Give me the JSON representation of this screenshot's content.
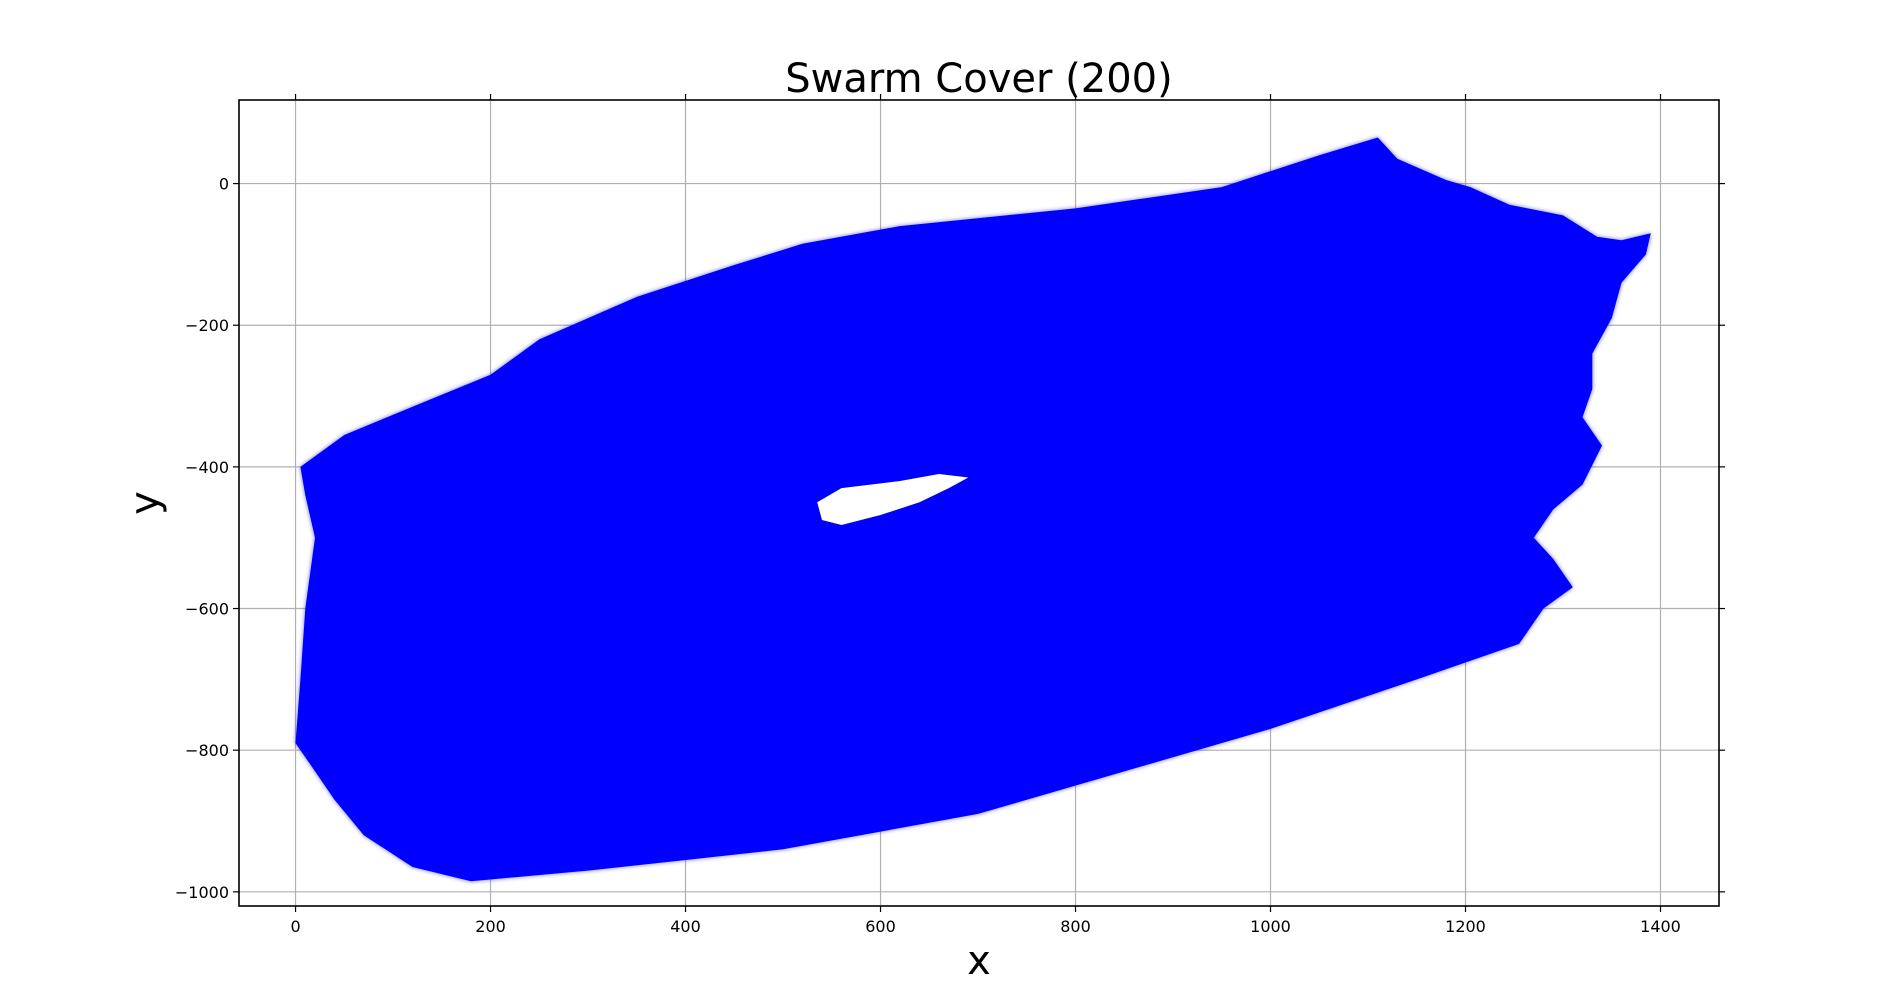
{
  "chart_data": {
    "type": "area",
    "title": "Swarm Cover (200)",
    "xlabel": "x",
    "ylabel": "y",
    "xlim": [
      -58,
      1460
    ],
    "ylim": [
      -1020,
      118
    ],
    "xticks": [
      0,
      200,
      400,
      600,
      800,
      1000,
      1200,
      1400
    ],
    "yticks": [
      0,
      -200,
      -400,
      -600,
      -800,
      -1000
    ],
    "xtick_labels": [
      "0",
      "200",
      "400",
      "600",
      "800",
      "1000",
      "1200",
      "1400"
    ],
    "ytick_labels": [
      "0",
      "−200",
      "−400",
      "−600",
      "−800",
      "−1000"
    ],
    "grid": true,
    "colors": {
      "fill": "#0000ff",
      "grid": "#b0b0b0",
      "hole": "#ffffff"
    },
    "covered_region": [
      [
        5,
        -400
      ],
      [
        50,
        -355
      ],
      [
        120,
        -315
      ],
      [
        200,
        -270
      ],
      [
        250,
        -220
      ],
      [
        350,
        -160
      ],
      [
        450,
        -115
      ],
      [
        520,
        -85
      ],
      [
        620,
        -60
      ],
      [
        800,
        -35
      ],
      [
        950,
        -5
      ],
      [
        1050,
        40
      ],
      [
        1110,
        65
      ],
      [
        1130,
        35
      ],
      [
        1180,
        5
      ],
      [
        1205,
        -5
      ],
      [
        1245,
        -30
      ],
      [
        1300,
        -45
      ],
      [
        1335,
        -75
      ],
      [
        1360,
        -80
      ],
      [
        1390,
        -70
      ],
      [
        1385,
        -100
      ],
      [
        1360,
        -140
      ],
      [
        1350,
        -190
      ],
      [
        1330,
        -240
      ],
      [
        1330,
        -290
      ],
      [
        1320,
        -330
      ],
      [
        1340,
        -370
      ],
      [
        1320,
        -425
      ],
      [
        1290,
        -460
      ],
      [
        1270,
        -500
      ],
      [
        1290,
        -530
      ],
      [
        1310,
        -570
      ],
      [
        1280,
        -600
      ],
      [
        1255,
        -650
      ],
      [
        1150,
        -700
      ],
      [
        1000,
        -770
      ],
      [
        850,
        -830
      ],
      [
        700,
        -890
      ],
      [
        600,
        -915
      ],
      [
        500,
        -940
      ],
      [
        400,
        -955
      ],
      [
        300,
        -970
      ],
      [
        180,
        -985
      ],
      [
        120,
        -965
      ],
      [
        70,
        -920
      ],
      [
        40,
        -870
      ],
      [
        15,
        -820
      ],
      [
        0,
        -790
      ],
      [
        5,
        -700
      ],
      [
        10,
        -600
      ],
      [
        20,
        -500
      ],
      [
        10,
        -440
      ]
    ],
    "uncovered_hole": [
      [
        535,
        -450
      ],
      [
        560,
        -430
      ],
      [
        620,
        -420
      ],
      [
        660,
        -410
      ],
      [
        690,
        -415
      ],
      [
        670,
        -430
      ],
      [
        640,
        -450
      ],
      [
        600,
        -468
      ],
      [
        560,
        -482
      ],
      [
        540,
        -475
      ]
    ]
  }
}
